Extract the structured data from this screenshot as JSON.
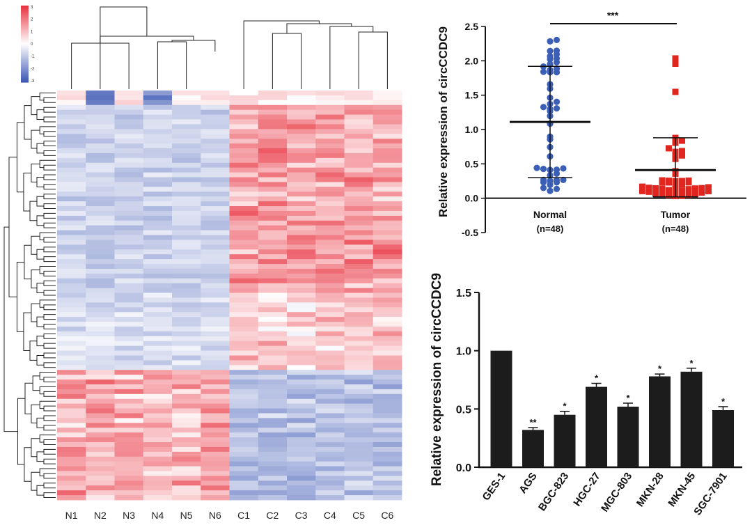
{
  "chart_data": [
    {
      "type": "heatmap",
      "columns": [
        "N1",
        "N2",
        "N3",
        "N4",
        "N5",
        "N6",
        "C1",
        "C2",
        "C3",
        "C4",
        "C5",
        "C6"
      ],
      "row_count": 85,
      "color_scale": {
        "ticks": [
          "3",
          "2",
          "1",
          "0",
          "-1",
          "-2",
          "-3"
        ],
        "range": [
          -3,
          3
        ],
        "low_color": "#3b55b3",
        "mid_color": "#ffffff",
        "high_color": "#e8303d"
      },
      "row_dendrogram": true,
      "column_dendrogram": true
    },
    {
      "type": "scatter",
      "ylabel": "Relative expression of circCCDC9",
      "ylim": [
        -0.5,
        2.5
      ],
      "yticks": [
        "2.5",
        "2.0",
        "1.5",
        "1.0",
        "0.5",
        "0.0",
        "-0.5"
      ],
      "groups": [
        {
          "label": "Normal",
          "n_label": "(n=48)",
          "color": "#3b5fb6",
          "marker": "circle",
          "mean": 1.11,
          "sd_upper": 1.92,
          "sd_lower": 0.3
        },
        {
          "label": "Tumor",
          "n_label": "(n=48)",
          "color": "#e0261e",
          "marker": "square",
          "mean": 0.41,
          "sd_upper": 0.88,
          "sd_lower": 0.02
        }
      ],
      "significance": "***"
    },
    {
      "type": "bar",
      "ylabel": "Relative expression of circCCDC9",
      "ylim": [
        0.0,
        1.5
      ],
      "yticks": [
        "1.5",
        "1.0",
        "0.5",
        "0.0"
      ],
      "categories": [
        "GES-1",
        "AGS",
        "BGC-823",
        "HGC-27",
        "MGC-803",
        "MKN-28",
        "MKN-45",
        "SGC-7901"
      ],
      "values": [
        1.0,
        0.32,
        0.45,
        0.69,
        0.52,
        0.78,
        0.82,
        0.49
      ],
      "errors": [
        0.0,
        0.02,
        0.03,
        0.03,
        0.03,
        0.02,
        0.03,
        0.03
      ],
      "significance": [
        "",
        "**",
        "*",
        "*",
        "*",
        "*",
        "*",
        "*"
      ],
      "bar_color": "#1c1c1c"
    }
  ]
}
